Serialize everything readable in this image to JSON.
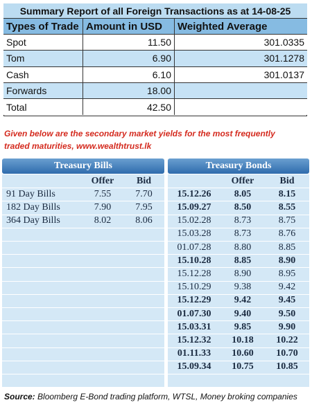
{
  "summary": {
    "title": "Summary Report of all Foreign Transactions as at 14-08-25",
    "headers": [
      "Types of Trade",
      "Amount in USD",
      "Weighted Average"
    ],
    "rows": [
      [
        "Spot",
        "11.50",
        "301.0335"
      ],
      [
        "Tom",
        "6.90",
        "301.1278"
      ],
      [
        "Cash",
        "6.10",
        "301.0137"
      ],
      [
        "Forwards",
        "18.00"
      ],
      [
        "Total",
        "42.50"
      ]
    ]
  },
  "note": [
    "Given below are the secondary market yields for the most frequently",
    "traded maturities, www.wealthtrust.lk"
  ],
  "bills": {
    "title": "Treasury Bills",
    "headers": [
      "Offer",
      "Bid"
    ],
    "rows": [
      [
        "91 Day Bills",
        "7.55",
        "7.70"
      ],
      [
        "182 Day Bills",
        "7.90",
        "7.95"
      ],
      [
        "364 Day Bills",
        "8.02",
        "8.06"
      ]
    ]
  },
  "bonds": {
    "title": "Treasury Bonds",
    "headers": [
      "Offer",
      "Bid"
    ],
    "rows": [
      [
        "15.12.26",
        "8.05",
        "8.15"
      ],
      [
        "15.09.27",
        "8.50",
        "8.55"
      ],
      [
        "15.02.28",
        "8.73",
        "8.75"
      ],
      [
        "15.03.28",
        "8.73",
        "8.76"
      ],
      [
        "01.07.28",
        "8.80",
        "8.85"
      ],
      [
        "15.10.28",
        "8.85",
        "8.90"
      ],
      [
        "15.12.28",
        "8.90",
        "8.95"
      ],
      [
        "15.10.29",
        "9.38",
        "9.42"
      ],
      [
        "15.12.29",
        "9.42",
        "9.45"
      ],
      [
        "01.07.30",
        "9.40",
        "9.50"
      ],
      [
        "15.03.31",
        "9.85",
        "9.90"
      ],
      [
        "15.12.32",
        "10.18",
        "10.22"
      ],
      [
        "01.11.33",
        "10.60",
        "10.70"
      ],
      [
        "15.09.34",
        "10.75",
        "10.85"
      ]
    ]
  },
  "source_label": "Source:",
  "source": "Bloomberg E-Bond trading platform, WTSL, Money broking companies"
}
